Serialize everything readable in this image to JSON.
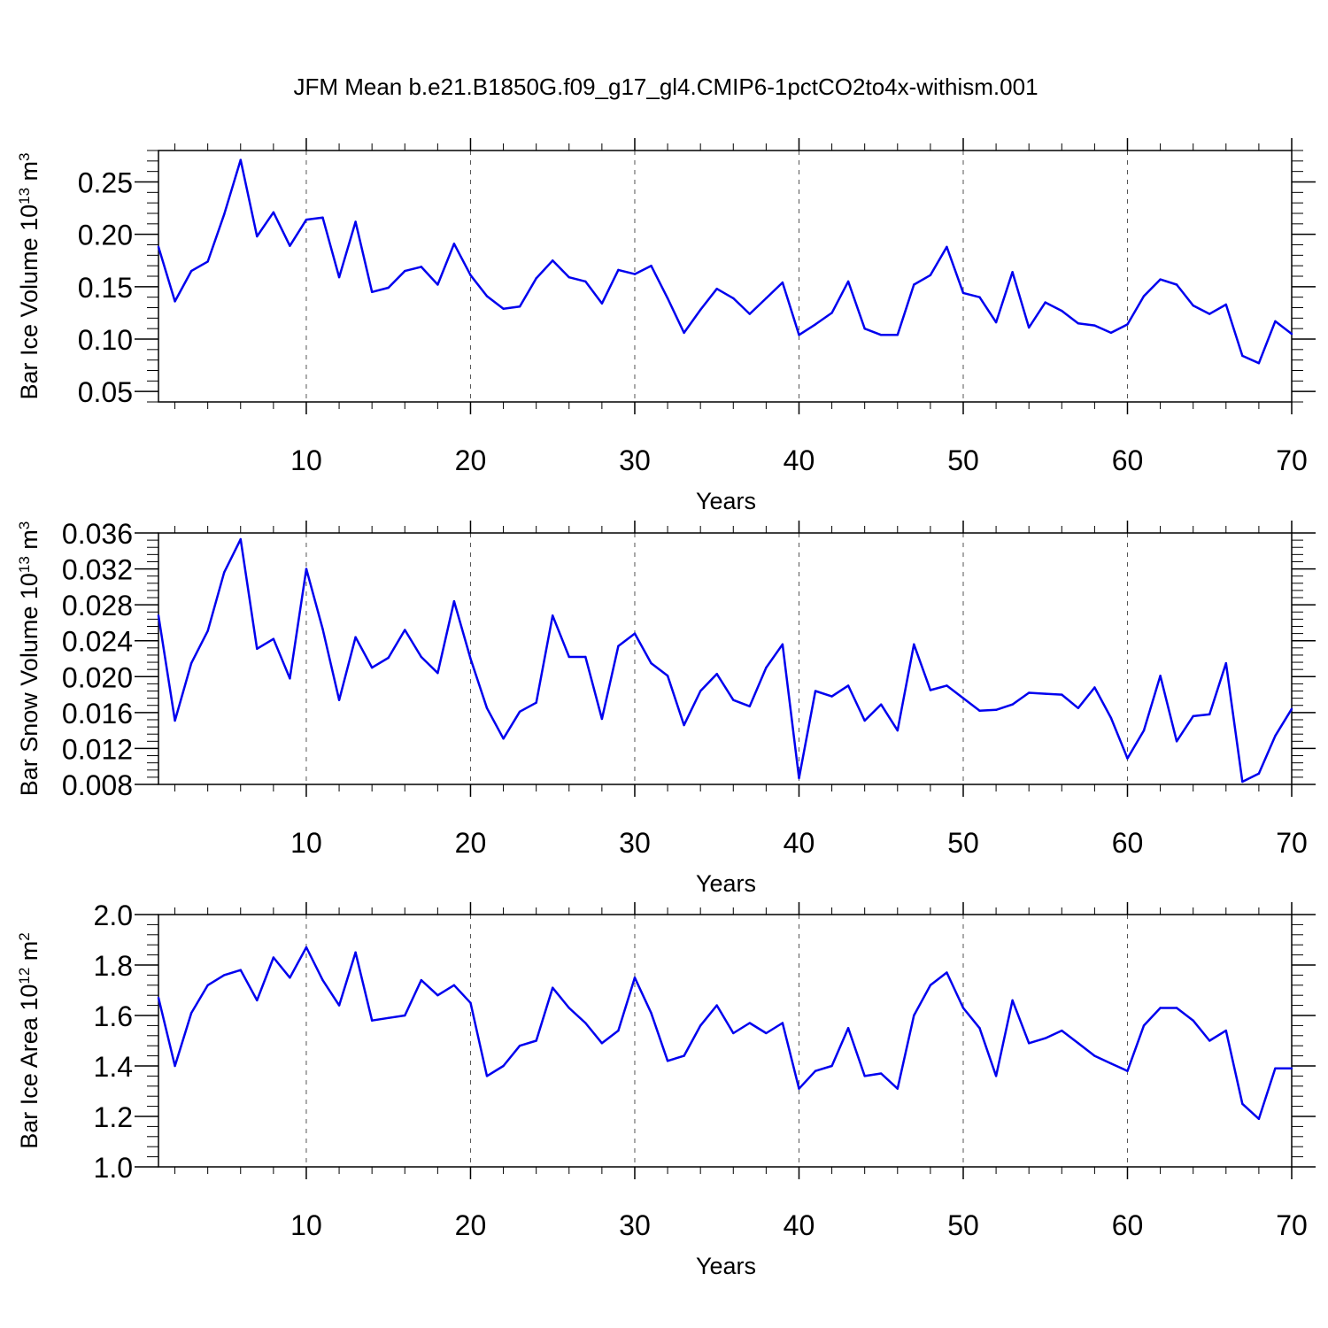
{
  "title": "JFM Mean b.e21.B1850G.f09_g17_gl4.CMIP6-1pctCO2to4x-withism.001",
  "colors": {
    "line": "#0000ee",
    "axis": "#000000",
    "grid": "#555555"
  },
  "chart_data": [
    {
      "type": "line",
      "ylabel": "Bar Ice Volume 10",
      "ylabel_exp": "13",
      "ylabel_unit": " m",
      "ylabel_unit_exp": "3",
      "xlabel": "Years",
      "xlim": [
        1,
        70
      ],
      "ylim": [
        0.04,
        0.28
      ],
      "yticks": [
        0.05,
        0.1,
        0.15,
        0.2,
        0.25
      ],
      "ytick_labels": [
        "0.05",
        "0.10",
        "0.15",
        "0.20",
        "0.25"
      ],
      "xticks": [
        10,
        20,
        30,
        40,
        50,
        60,
        70
      ],
      "xtick_labels": [
        "10",
        "20",
        "30",
        "40",
        "50",
        "60",
        "70"
      ],
      "grid": "vertical dashed",
      "x": [
        1,
        2,
        3,
        4,
        5,
        6,
        7,
        8,
        9,
        10,
        11,
        12,
        13,
        14,
        15,
        16,
        17,
        18,
        19,
        20,
        21,
        22,
        23,
        24,
        25,
        26,
        27,
        28,
        29,
        30,
        31,
        32,
        33,
        34,
        35,
        36,
        37,
        38,
        39,
        40,
        41,
        42,
        43,
        44,
        45,
        46,
        47,
        48,
        49,
        50,
        51,
        52,
        53,
        54,
        55,
        56,
        57,
        58,
        59,
        60,
        61,
        62,
        63,
        64,
        65,
        66,
        67,
        68,
        69,
        70
      ],
      "values": [
        0.188,
        0.136,
        0.165,
        0.174,
        0.219,
        0.271,
        0.198,
        0.221,
        0.189,
        0.214,
        0.216,
        0.159,
        0.212,
        0.145,
        0.149,
        0.165,
        0.169,
        0.152,
        0.191,
        0.161,
        0.141,
        0.129,
        0.131,
        0.158,
        0.175,
        0.159,
        0.155,
        0.134,
        0.166,
        0.162,
        0.17,
        0.139,
        0.106,
        0.128,
        0.148,
        0.139,
        0.124,
        0.139,
        0.154,
        0.104,
        0.114,
        0.125,
        0.155,
        0.11,
        0.104,
        0.104,
        0.152,
        0.161,
        0.188,
        0.144,
        0.14,
        0.116,
        0.164,
        0.111,
        0.135,
        0.127,
        0.115,
        0.113,
        0.106,
        0.114,
        0.141,
        0.157,
        0.152,
        0.132,
        0.124,
        0.133,
        0.084,
        0.077,
        0.117,
        0.105
      ]
    },
    {
      "type": "line",
      "ylabel": "Bar Snow Volume 10",
      "ylabel_exp": "13",
      "ylabel_unit": " m",
      "ylabel_unit_exp": "3",
      "xlabel": "Years",
      "xlim": [
        1,
        70
      ],
      "ylim": [
        0.008,
        0.036
      ],
      "yticks": [
        0.008,
        0.012,
        0.016,
        0.02,
        0.024,
        0.028,
        0.032,
        0.036
      ],
      "ytick_labels": [
        "0.008",
        "0.012",
        "0.016",
        "0.020",
        "0.024",
        "0.028",
        "0.032",
        "0.036"
      ],
      "xticks": [
        10,
        20,
        30,
        40,
        50,
        60,
        70
      ],
      "xtick_labels": [
        "10",
        "20",
        "30",
        "40",
        "50",
        "60",
        "70"
      ],
      "grid": "vertical dashed",
      "x": [
        1,
        2,
        3,
        4,
        5,
        6,
        7,
        8,
        9,
        10,
        11,
        12,
        13,
        14,
        15,
        16,
        17,
        18,
        19,
        20,
        21,
        22,
        23,
        24,
        25,
        26,
        27,
        28,
        29,
        30,
        31,
        32,
        33,
        34,
        35,
        36,
        37,
        38,
        39,
        40,
        41,
        42,
        43,
        44,
        45,
        46,
        47,
        48,
        49,
        50,
        51,
        52,
        53,
        54,
        55,
        56,
        57,
        58,
        59,
        60,
        61,
        62,
        63,
        64,
        65,
        66,
        67,
        68,
        69,
        70
      ],
      "values": [
        0.0268,
        0.0151,
        0.0215,
        0.0251,
        0.0316,
        0.0353,
        0.0231,
        0.0242,
        0.0198,
        0.032,
        0.0253,
        0.0174,
        0.0244,
        0.021,
        0.0221,
        0.0252,
        0.0222,
        0.0204,
        0.0284,
        0.022,
        0.0165,
        0.0131,
        0.0161,
        0.0171,
        0.0268,
        0.0222,
        0.0222,
        0.0153,
        0.0234,
        0.0248,
        0.0215,
        0.0201,
        0.0146,
        0.0184,
        0.0203,
        0.0174,
        0.0167,
        0.021,
        0.0236,
        0.0087,
        0.0184,
        0.0178,
        0.019,
        0.0151,
        0.0169,
        0.014,
        0.0236,
        0.0185,
        0.019,
        0.0176,
        0.0162,
        0.0163,
        0.0169,
        0.0182,
        0.0181,
        0.018,
        0.0165,
        0.0188,
        0.0154,
        0.0109,
        0.014,
        0.0201,
        0.0128,
        0.0156,
        0.0158,
        0.0215,
        0.0083,
        0.0092,
        0.0134,
        0.0164
      ]
    },
    {
      "type": "line",
      "ylabel": "Bar Ice Area 10",
      "ylabel_exp": "12",
      "ylabel_unit": " m",
      "ylabel_unit_exp": "2",
      "xlabel": "Years",
      "xlim": [
        1,
        70
      ],
      "ylim": [
        1.0,
        2.0
      ],
      "yticks": [
        1.0,
        1.2,
        1.4,
        1.6,
        1.8,
        2.0
      ],
      "ytick_labels": [
        "1.0",
        "1.2",
        "1.4",
        "1.6",
        "1.8",
        "2.0"
      ],
      "xticks": [
        10,
        20,
        30,
        40,
        50,
        60,
        70
      ],
      "xtick_labels": [
        "10",
        "20",
        "30",
        "40",
        "50",
        "60",
        "70"
      ],
      "grid": "vertical dashed",
      "x": [
        1,
        2,
        3,
        4,
        5,
        6,
        7,
        8,
        9,
        10,
        11,
        12,
        13,
        14,
        15,
        16,
        17,
        18,
        19,
        20,
        21,
        22,
        23,
        24,
        25,
        26,
        27,
        28,
        29,
        30,
        31,
        32,
        33,
        34,
        35,
        36,
        37,
        38,
        39,
        40,
        41,
        42,
        43,
        44,
        45,
        46,
        47,
        48,
        49,
        50,
        51,
        52,
        53,
        54,
        55,
        56,
        57,
        58,
        59,
        60,
        61,
        62,
        63,
        64,
        65,
        66,
        67,
        68,
        69,
        70
      ],
      "values": [
        1.67,
        1.4,
        1.61,
        1.72,
        1.76,
        1.78,
        1.66,
        1.83,
        1.75,
        1.87,
        1.74,
        1.64,
        1.85,
        1.58,
        1.59,
        1.6,
        1.74,
        1.68,
        1.72,
        1.65,
        1.36,
        1.4,
        1.48,
        1.5,
        1.71,
        1.63,
        1.57,
        1.49,
        1.54,
        1.75,
        1.61,
        1.42,
        1.44,
        1.56,
        1.64,
        1.53,
        1.57,
        1.53,
        1.57,
        1.31,
        1.38,
        1.4,
        1.55,
        1.36,
        1.37,
        1.31,
        1.6,
        1.72,
        1.77,
        1.63,
        1.55,
        1.36,
        1.66,
        1.49,
        1.51,
        1.54,
        1.49,
        1.44,
        1.41,
        1.38,
        1.56,
        1.63,
        1.63,
        1.58,
        1.5,
        1.54,
        1.25,
        1.19,
        1.39,
        1.39
      ]
    }
  ]
}
